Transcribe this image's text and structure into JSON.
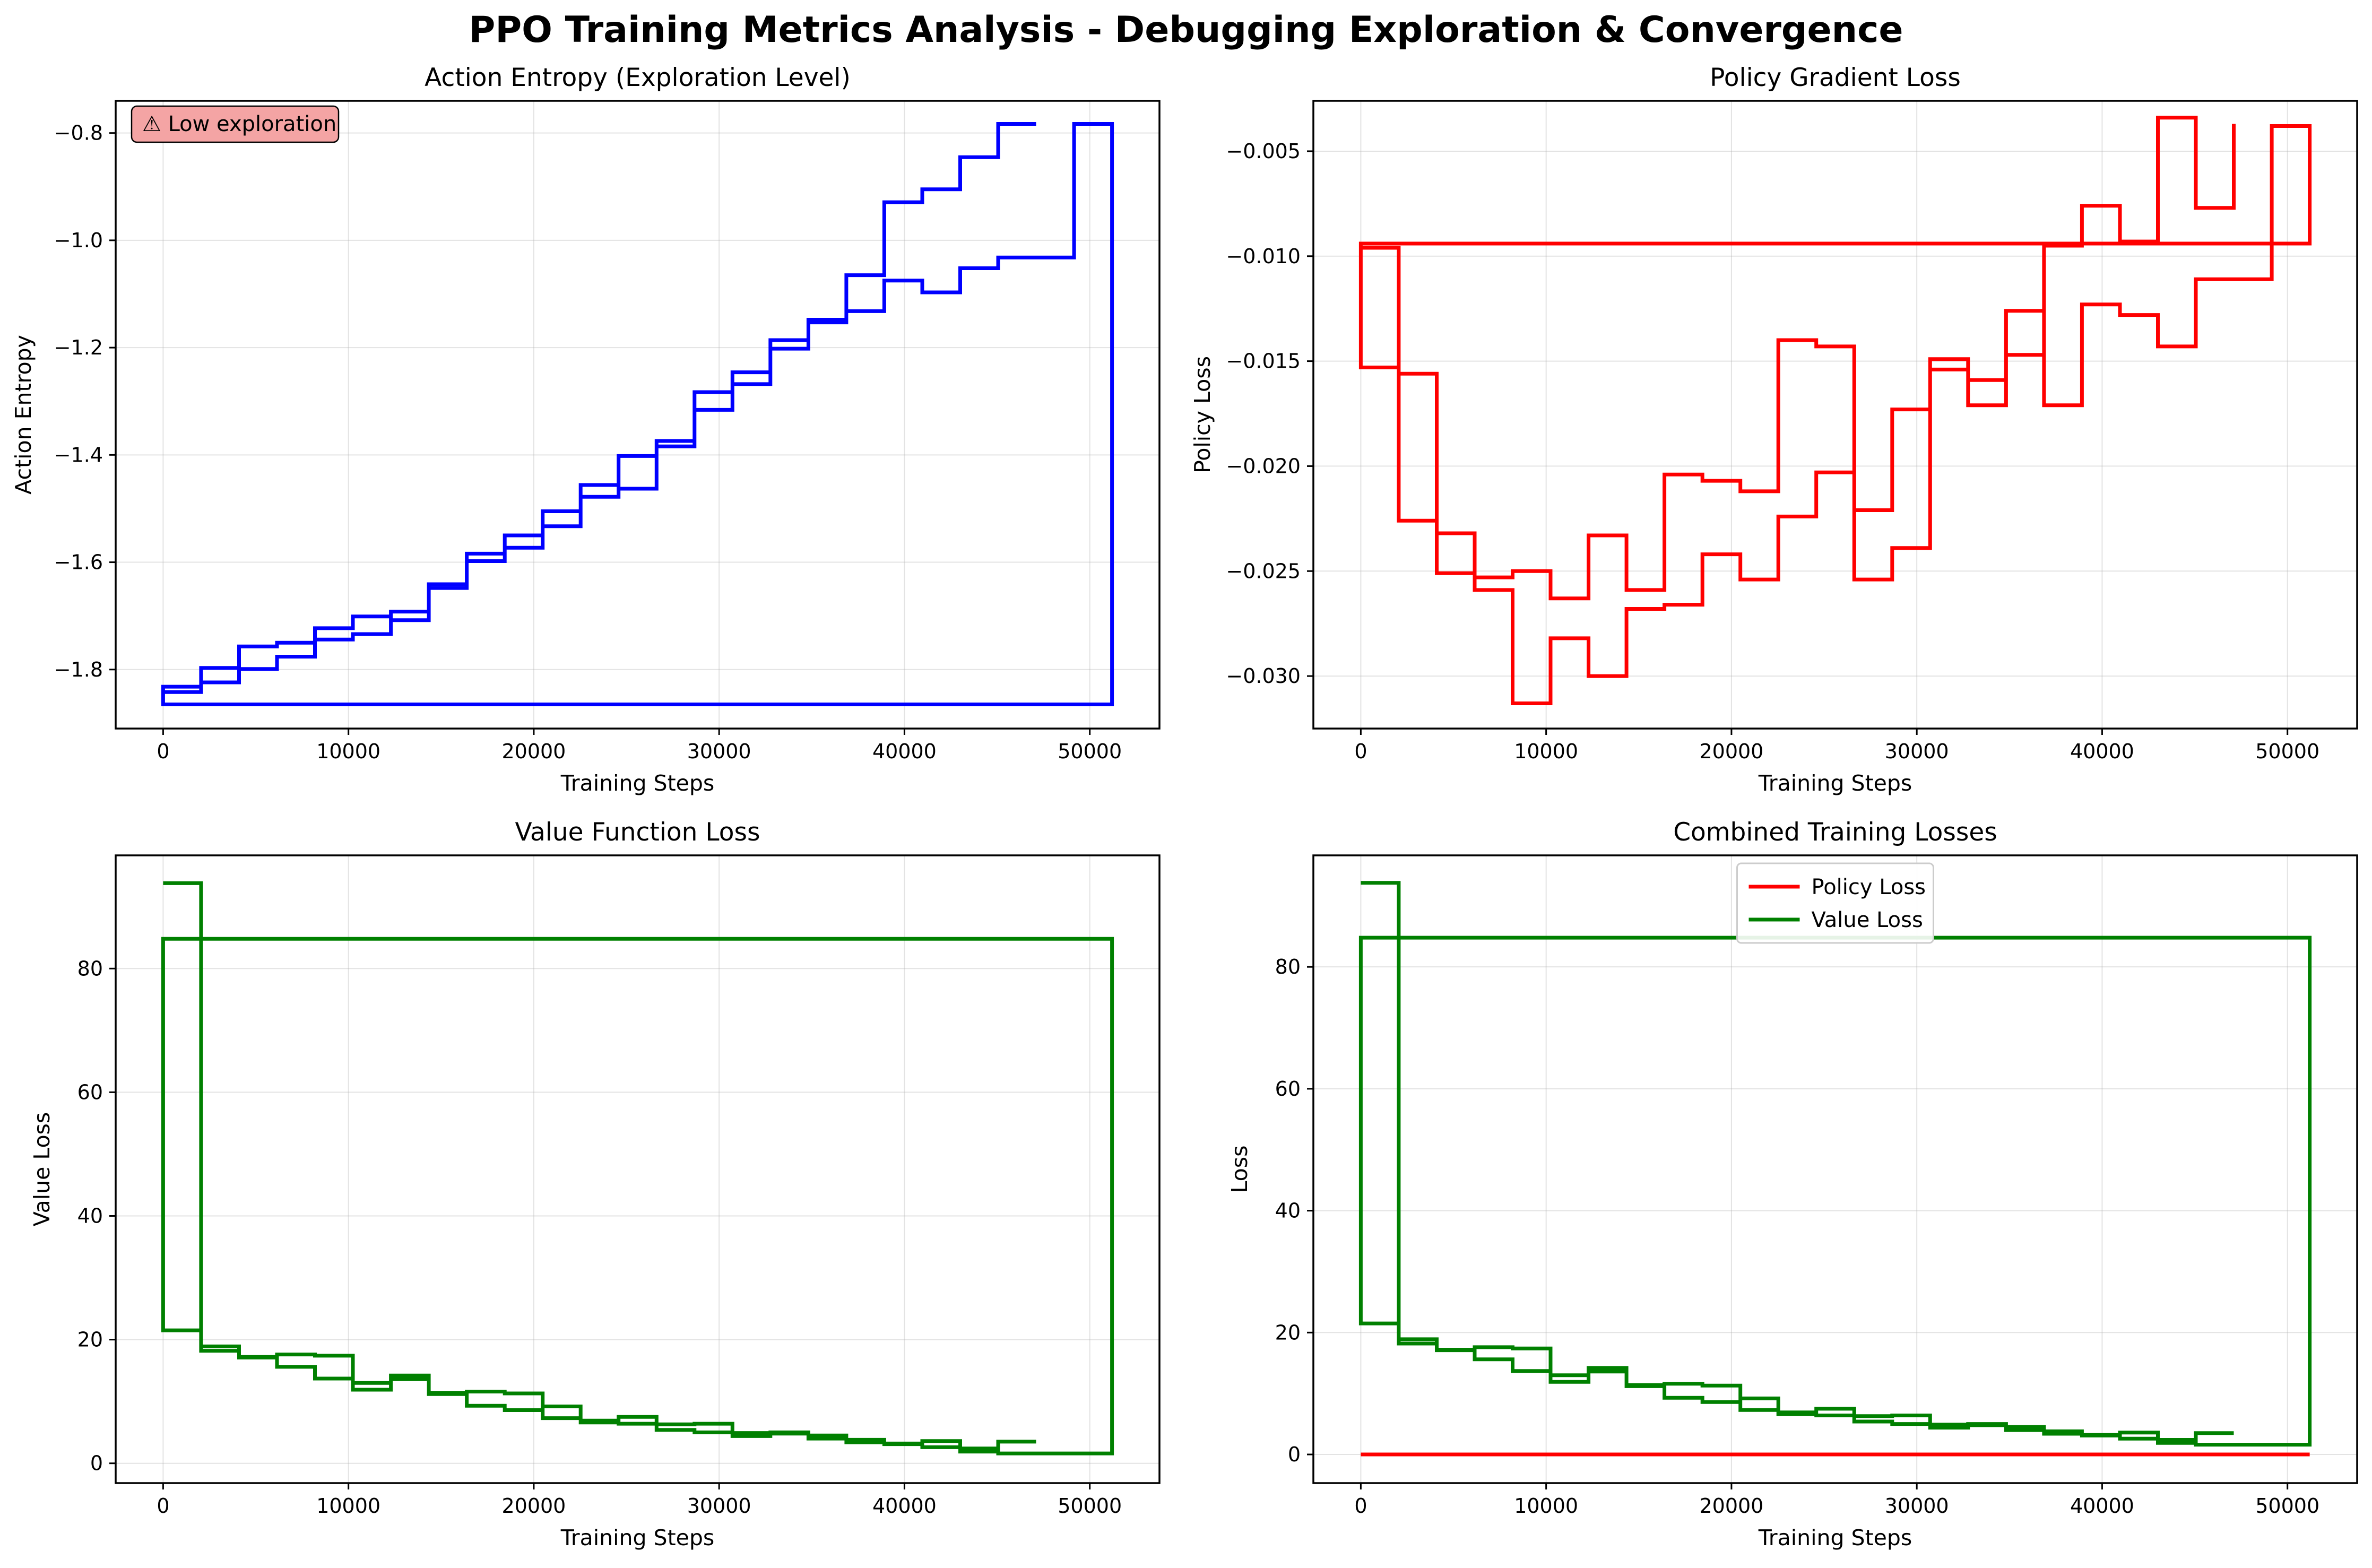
{
  "suptitle": "PPO Training Metrics Analysis - Debugging Exploration & Convergence",
  "colors": {
    "policy": "#ff0000",
    "value": "#008000",
    "entropy": "#0000ff"
  },
  "chart_data": [
    {
      "id": "entropy",
      "type": "line",
      "title": "Action Entropy (Exploration Level)",
      "xlabel": "Training Steps",
      "ylabel": "Action Entropy",
      "xlim": [
        -2560,
        53760
      ],
      "ylim": [
        -1.91,
        -0.74
      ],
      "xticks": [
        0,
        10000,
        20000,
        30000,
        40000,
        50000
      ],
      "yticks": [
        -1.8,
        -1.6,
        -1.4,
        -1.2,
        -1.0,
        -0.8
      ],
      "color": "#0000ff",
      "annotation": "⚠ Low exploration",
      "series": [
        {
          "drawstyle": "steps",
          "x": [
            0,
            2048,
            4096,
            6144,
            8192,
            10240,
            12288,
            14336,
            16384,
            18432,
            20480,
            22528,
            24576,
            26624,
            28672,
            30720,
            32768,
            34816,
            36864,
            38912,
            40960,
            43008,
            45056,
            47104,
            49152,
            51200,
            0,
            2048,
            4096,
            6144,
            8192,
            10240,
            12288,
            14336,
            16384,
            18432,
            20480,
            22528,
            24576,
            26624,
            28672,
            30720,
            32768,
            34816,
            36864,
            38912,
            40960,
            43008,
            45056,
            47104
          ],
          "y": [
            -1.842,
            -1.824,
            -1.799,
            -1.776,
            -1.744,
            -1.734,
            -1.708,
            -1.648,
            -1.598,
            -1.573,
            -1.533,
            -1.478,
            -1.463,
            -1.384,
            -1.316,
            -1.268,
            -1.202,
            -1.153,
            -1.132,
            -1.075,
            -1.097,
            -1.052,
            -1.032,
            -1.032,
            -0.783,
            -1.865,
            -1.832,
            -1.797,
            -1.757,
            -1.75,
            -1.723,
            -1.701,
            -1.692,
            -1.641,
            -1.584,
            -1.55,
            -1.505,
            -1.456,
            -1.402,
            -1.374,
            -1.283,
            -1.246,
            -1.186,
            -1.148,
            -1.065,
            -0.929,
            -0.905,
            -0.845,
            -0.783,
            -0.783
          ]
        }
      ]
    },
    {
      "id": "policy",
      "type": "line",
      "title": "Policy Gradient Loss",
      "xlabel": "Training Steps",
      "ylabel": "Policy Loss",
      "xlim": [
        -2560,
        53760
      ],
      "ylim": [
        -0.0325,
        -0.0026
      ],
      "xticks": [
        0,
        10000,
        20000,
        30000,
        40000,
        50000
      ],
      "yticks": [
        -0.03,
        -0.025,
        -0.02,
        -0.015,
        -0.01,
        -0.005
      ],
      "color": "#ff0000",
      "series": [
        {
          "drawstyle": "steps",
          "x": [
            0,
            2048,
            4096,
            6144,
            8192,
            10240,
            12288,
            14336,
            16384,
            18432,
            20480,
            22528,
            24576,
            26624,
            28672,
            30720,
            32768,
            34816,
            36864,
            38912,
            40960,
            43008,
            45056,
            47104,
            49152,
            51200,
            0,
            2048,
            4096,
            6144,
            8192,
            10240,
            12288,
            14336,
            16384,
            18432,
            20480,
            22528,
            24576,
            26624,
            28672,
            30720,
            32768,
            34816,
            36864,
            38912,
            40960,
            43008,
            45056,
            47104
          ],
          "y": [
            -0.0096,
            -0.0226,
            -0.0251,
            -0.0259,
            -0.0313,
            -0.0282,
            -0.03,
            -0.0268,
            -0.0266,
            -0.0242,
            -0.0254,
            -0.0224,
            -0.0203,
            -0.0254,
            -0.0239,
            -0.0154,
            -0.0171,
            -0.0126,
            -0.0171,
            -0.0123,
            -0.0128,
            -0.0143,
            -0.0111,
            -0.0111,
            -0.0038,
            -0.0094,
            -0.0153,
            -0.0156,
            -0.0232,
            -0.0253,
            -0.025,
            -0.0263,
            -0.0233,
            -0.0259,
            -0.0204,
            -0.0207,
            -0.0212,
            -0.014,
            -0.0143,
            -0.0221,
            -0.0173,
            -0.0149,
            -0.0159,
            -0.0147,
            -0.0095,
            -0.0076,
            -0.0093,
            -0.0034,
            -0.0077,
            -0.0037
          ]
        }
      ]
    },
    {
      "id": "value",
      "type": "line",
      "title": "Value Function Loss",
      "xlabel": "Training Steps",
      "ylabel": "Value Loss",
      "xlim": [
        -2560,
        53760
      ],
      "ylim": [
        -3.2,
        98.3
      ],
      "xticks": [
        0,
        10000,
        20000,
        30000,
        40000,
        50000
      ],
      "yticks": [
        0,
        20,
        40,
        60,
        80
      ],
      "color": "#008000",
      "series": [
        {
          "drawstyle": "steps",
          "x": [
            0,
            2048,
            4096,
            6144,
            8192,
            10240,
            12288,
            14336,
            16384,
            18432,
            20480,
            22528,
            24576,
            26624,
            28672,
            30720,
            32768,
            34816,
            36864,
            38912,
            40960,
            43008,
            45056,
            47104,
            49152,
            51200,
            0,
            2048,
            4096,
            6144,
            8192,
            10240,
            12288,
            14336,
            16384,
            18432,
            20480,
            22528,
            24576,
            26624,
            28672,
            30720,
            32768,
            34816,
            36864,
            38912,
            40960,
            43008,
            45056,
            47104
          ],
          "y": [
            93.8,
            18.2,
            17.1,
            15.6,
            13.7,
            11.9,
            13.6,
            11.2,
            9.3,
            8.6,
            7.3,
            6.6,
            6.4,
            5.4,
            5.0,
            4.4,
            4.8,
            4.0,
            3.4,
            3.1,
            2.6,
            2.4,
            1.6,
            1.6,
            1.6,
            84.8,
            21.5,
            18.9,
            17.2,
            17.6,
            17.4,
            13.0,
            14.2,
            11.4,
            11.6,
            11.3,
            9.2,
            6.9,
            7.5,
            6.3,
            6.4,
            4.9,
            5.0,
            4.5,
            3.8,
            3.2,
            3.6,
            1.9,
            3.5,
            3.5
          ]
        }
      ]
    },
    {
      "id": "combined",
      "type": "line",
      "title": "Combined Training Losses",
      "xlabel": "Training Steps",
      "ylabel": "Loss",
      "xlim": [
        -2560,
        53760
      ],
      "ylim": [
        -4.7,
        98.3
      ],
      "xticks": [
        0,
        10000,
        20000,
        30000,
        40000,
        50000
      ],
      "yticks": [
        0,
        20,
        40,
        60,
        80
      ],
      "legend": "upper center",
      "series": [
        {
          "name": "Policy Loss",
          "color": "#ff0000",
          "drawstyle": "steps",
          "x": [
            0,
            51200
          ],
          "y": [
            0,
            0
          ]
        },
        {
          "name": "Value Loss",
          "color": "#008000",
          "drawstyle": "steps",
          "x": [
            0,
            2048,
            4096,
            6144,
            8192,
            10240,
            12288,
            14336,
            16384,
            18432,
            20480,
            22528,
            24576,
            26624,
            28672,
            30720,
            32768,
            34816,
            36864,
            38912,
            40960,
            43008,
            45056,
            47104,
            49152,
            51200,
            0,
            2048,
            4096,
            6144,
            8192,
            10240,
            12288,
            14336,
            16384,
            18432,
            20480,
            22528,
            24576,
            26624,
            28672,
            30720,
            32768,
            34816,
            36864,
            38912,
            40960,
            43008,
            45056,
            47104
          ],
          "y": [
            93.8,
            18.2,
            17.1,
            15.6,
            13.7,
            11.9,
            13.6,
            11.2,
            9.3,
            8.6,
            7.3,
            6.6,
            6.4,
            5.4,
            5.0,
            4.4,
            4.8,
            4.0,
            3.4,
            3.1,
            2.6,
            2.4,
            1.6,
            1.6,
            1.6,
            84.8,
            21.5,
            18.9,
            17.2,
            17.6,
            17.4,
            13.0,
            14.2,
            11.4,
            11.6,
            11.3,
            9.2,
            6.9,
            7.5,
            6.3,
            6.4,
            4.9,
            5.0,
            4.5,
            3.8,
            3.2,
            3.6,
            1.9,
            3.5,
            3.5
          ]
        }
      ]
    }
  ]
}
